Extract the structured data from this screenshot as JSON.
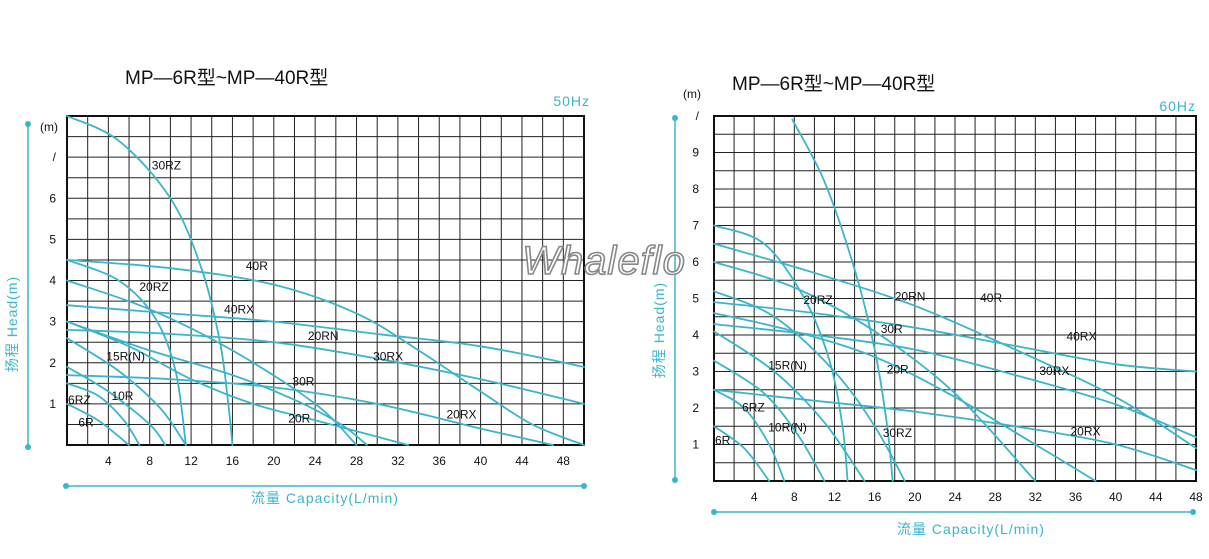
{
  "watermark": "Whaleflo",
  "chart_data": [
    {
      "type": "line",
      "title": "MP—6R型~MP—40R型",
      "frequency": "50Hz",
      "xlabel": "流量 Capacity(L/min)",
      "ylabel": "扬程 Head(m)",
      "y_unit": "(m)",
      "y_top_tick": "/",
      "xlim": [
        0,
        50
      ],
      "ylim": [
        0,
        8
      ],
      "x_ticks": [
        4,
        8,
        12,
        16,
        20,
        24,
        28,
        32,
        36,
        40,
        44,
        48
      ],
      "y_ticks": [
        1,
        2,
        3,
        4,
        5,
        6
      ],
      "series": [
        {
          "name": "6R",
          "x": [
            0,
            3,
            6
          ],
          "y": [
            1,
            0.6,
            0
          ]
        },
        {
          "name": "6RZ",
          "x": [
            0,
            3,
            5.5,
            7
          ],
          "y": [
            1.5,
            1.2,
            0.6,
            0
          ]
        },
        {
          "name": "10R",
          "x": [
            0,
            4,
            8,
            9.5
          ],
          "y": [
            1.9,
            1.3,
            0.5,
            0
          ]
        },
        {
          "name": "15R(N)",
          "x": [
            0,
            5,
            9,
            11.5
          ],
          "y": [
            2.6,
            1.8,
            0.9,
            0
          ]
        },
        {
          "name": "20RZ",
          "x": [
            0,
            5,
            8.5,
            10.5,
            11.5
          ],
          "y": [
            4.5,
            4.0,
            3.1,
            1.8,
            0
          ]
        },
        {
          "name": "30RZ",
          "x": [
            0,
            5,
            10,
            13,
            14.8,
            15.6,
            16
          ],
          "y": [
            8,
            7.4,
            6.0,
            4.3,
            2.5,
            1.0,
            0
          ]
        },
        {
          "name": "20R",
          "x": [
            0,
            8,
            16,
            22,
            26.5,
            29
          ],
          "y": [
            3.0,
            2.3,
            1.7,
            1.1,
            0.5,
            0
          ]
        },
        {
          "name": "30R",
          "x": [
            0,
            8,
            16,
            24,
            28
          ],
          "y": [
            4.0,
            3.3,
            2.3,
            1.0,
            0
          ]
        },
        {
          "name": "20RN",
          "x": [
            0,
            6,
            12,
            18,
            24,
            30,
            33
          ],
          "y": [
            3.0,
            2.4,
            1.6,
            1.0,
            0.6,
            0.2,
            0
          ]
        },
        {
          "name": "40R",
          "x": [
            0,
            10,
            20,
            28,
            34,
            40,
            45,
            50
          ],
          "y": [
            4.5,
            4.3,
            3.9,
            3.2,
            2.3,
            1.3,
            0.5,
            0
          ]
        },
        {
          "name": "40RX",
          "x": [
            0,
            10,
            20,
            30,
            40,
            50
          ],
          "y": [
            3.4,
            3.2,
            3.0,
            2.7,
            2.4,
            1.9
          ]
        },
        {
          "name": "30RX",
          "x": [
            0,
            10,
            20,
            30,
            40,
            50
          ],
          "y": [
            2.8,
            2.7,
            2.5,
            2.1,
            1.6,
            1.0
          ]
        },
        {
          "name": "20RX",
          "x": [
            0,
            10,
            20,
            30,
            40,
            47
          ],
          "y": [
            1.7,
            1.6,
            1.4,
            1.0,
            0.4,
            0
          ]
        }
      ],
      "labels": [
        {
          "text": "30RZ",
          "x": 8.2,
          "y": 6.7
        },
        {
          "text": "40R",
          "x": 17.3,
          "y": 4.25
        },
        {
          "text": "20RZ",
          "x": 7,
          "y": 3.75
        },
        {
          "text": "40RX",
          "x": 15.2,
          "y": 3.2
        },
        {
          "text": "20RN",
          "x": 23.3,
          "y": 2.55
        },
        {
          "text": "30RX",
          "x": 29.6,
          "y": 2.05
        },
        {
          "text": "15R(N)",
          "x": 3.8,
          "y": 2.05
        },
        {
          "text": "30R",
          "x": 21.8,
          "y": 1.45
        },
        {
          "text": "10R",
          "x": 4.3,
          "y": 1.1
        },
        {
          "text": "6RZ",
          "x": 0.1,
          "y": 1.0
        },
        {
          "text": "20R",
          "x": 21.4,
          "y": 0.55
        },
        {
          "text": "20RX",
          "x": 36.7,
          "y": 0.65
        },
        {
          "text": "6R",
          "x": 1.1,
          "y": 0.45
        }
      ]
    },
    {
      "type": "line",
      "title": "MP—6R型~MP—40R型",
      "frequency": "60Hz",
      "xlabel": "流量 Capacity(L/min)",
      "ylabel": "扬程 Head(m)",
      "y_unit": "(m)",
      "y_top_tick": "/",
      "xlim": [
        0,
        48
      ],
      "ylim": [
        0,
        10
      ],
      "x_ticks": [
        4,
        8,
        12,
        16,
        20,
        24,
        28,
        32,
        36,
        40,
        44,
        48
      ],
      "y_ticks": [
        1,
        2,
        3,
        4,
        5,
        6,
        7,
        8,
        9
      ],
      "series": [
        {
          "name": "6R",
          "x": [
            0,
            3,
            5.5
          ],
          "y": [
            1.5,
            0.9,
            0
          ]
        },
        {
          "name": "6RZ",
          "x": [
            0,
            3,
            5.5,
            7
          ],
          "y": [
            2.5,
            2.0,
            1.0,
            0
          ]
        },
        {
          "name": "10R(N)",
          "x": [
            0,
            5,
            8.5,
            11
          ],
          "y": [
            3.3,
            2.4,
            1.2,
            0
          ]
        },
        {
          "name": "15R(N)",
          "x": [
            0,
            6,
            11,
            15
          ],
          "y": [
            4.1,
            3.0,
            1.6,
            0
          ]
        },
        {
          "name": "20RZ",
          "x": [
            0,
            5,
            9,
            11.5,
            12.8,
            13.3
          ],
          "y": [
            7.0,
            6.5,
            5.0,
            3.3,
            1.5,
            0
          ]
        },
        {
          "name": "30RZ",
          "x": [
            7.8,
            11,
            14,
            16,
            17.2,
            17.8
          ],
          "y": [
            9.9,
            8.2,
            5.8,
            3.6,
            1.6,
            0
          ]
        },
        {
          "name": "20R",
          "x": [
            0,
            6,
            12,
            16,
            19
          ],
          "y": [
            5.2,
            4.5,
            3.0,
            1.5,
            0
          ]
        },
        {
          "name": "30R",
          "x": [
            0,
            8,
            16,
            24,
            32
          ],
          "y": [
            6.0,
            5.3,
            4.1,
            2.4,
            0
          ]
        },
        {
          "name": "20RN",
          "x": [
            0,
            8,
            16,
            24,
            32,
            38
          ],
          "y": [
            4.6,
            4.1,
            3.4,
            2.3,
            1.0,
            0
          ]
        },
        {
          "name": "40R",
          "x": [
            0,
            10,
            20,
            30,
            40,
            48
          ],
          "y": [
            6.5,
            5.7,
            4.8,
            3.6,
            2.3,
            0.9
          ]
        },
        {
          "name": "40RX",
          "x": [
            0,
            10,
            20,
            30,
            40,
            48
          ],
          "y": [
            4.9,
            4.6,
            4.2,
            3.7,
            3.2,
            3.0
          ]
        },
        {
          "name": "30RX",
          "x": [
            0,
            10,
            20,
            30,
            40,
            48
          ],
          "y": [
            4.3,
            4.0,
            3.6,
            2.9,
            2.1,
            1.2
          ]
        },
        {
          "name": "20RX",
          "x": [
            0,
            10,
            20,
            30,
            40,
            48
          ],
          "y": [
            2.5,
            2.2,
            1.9,
            1.5,
            1.0,
            0.3
          ]
        }
      ],
      "labels": [
        {
          "text": "20RZ",
          "x": 8.9,
          "y": 4.85
        },
        {
          "text": "20RN",
          "x": 18,
          "y": 4.95
        },
        {
          "text": "40R",
          "x": 26.5,
          "y": 4.9
        },
        {
          "text": "30R",
          "x": 16.6,
          "y": 4.05
        },
        {
          "text": "40RX",
          "x": 35.1,
          "y": 3.85
        },
        {
          "text": "15R(N)",
          "x": 5.4,
          "y": 3.05
        },
        {
          "text": "20R",
          "x": 17.2,
          "y": 2.95
        },
        {
          "text": "30RX",
          "x": 32.4,
          "y": 2.9
        },
        {
          "text": "6RZ",
          "x": 2.8,
          "y": 1.9
        },
        {
          "text": "10R(N)",
          "x": 5.4,
          "y": 1.35
        },
        {
          "text": "30RZ",
          "x": 16.8,
          "y": 1.2
        },
        {
          "text": "20RX",
          "x": 35.5,
          "y": 1.25
        },
        {
          "text": "6R",
          "x": 0.1,
          "y": 1.0
        }
      ]
    }
  ]
}
